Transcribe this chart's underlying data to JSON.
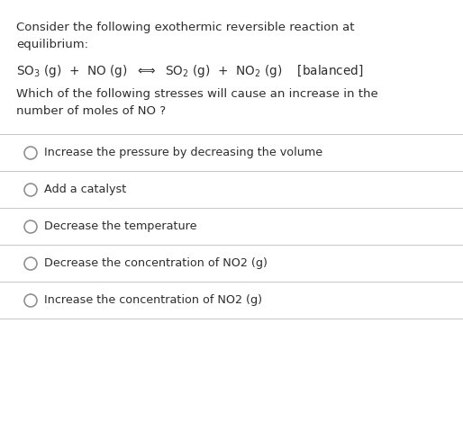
{
  "background_color": "#ffffff",
  "text_color": "#2d2d2d",
  "title_line1": "Consider the following exothermic reversible reaction at",
  "title_line2": "equilibrium:",
  "question_line1": "Which of the following stresses will cause an increase in the",
  "question_line2": "number of moles of NO ?",
  "options": [
    "Increase the pressure by decreasing the volume",
    "Add a catalyst",
    "Decrease the temperature",
    "Decrease the concentration of NO2 (g)",
    "Increase the concentration of NO2 (g)"
  ],
  "divider_color": "#c8c8c8",
  "circle_color": "#888888",
  "font_size_main": 9.5,
  "font_size_equation": 9.8,
  "font_size_options": 9.2
}
